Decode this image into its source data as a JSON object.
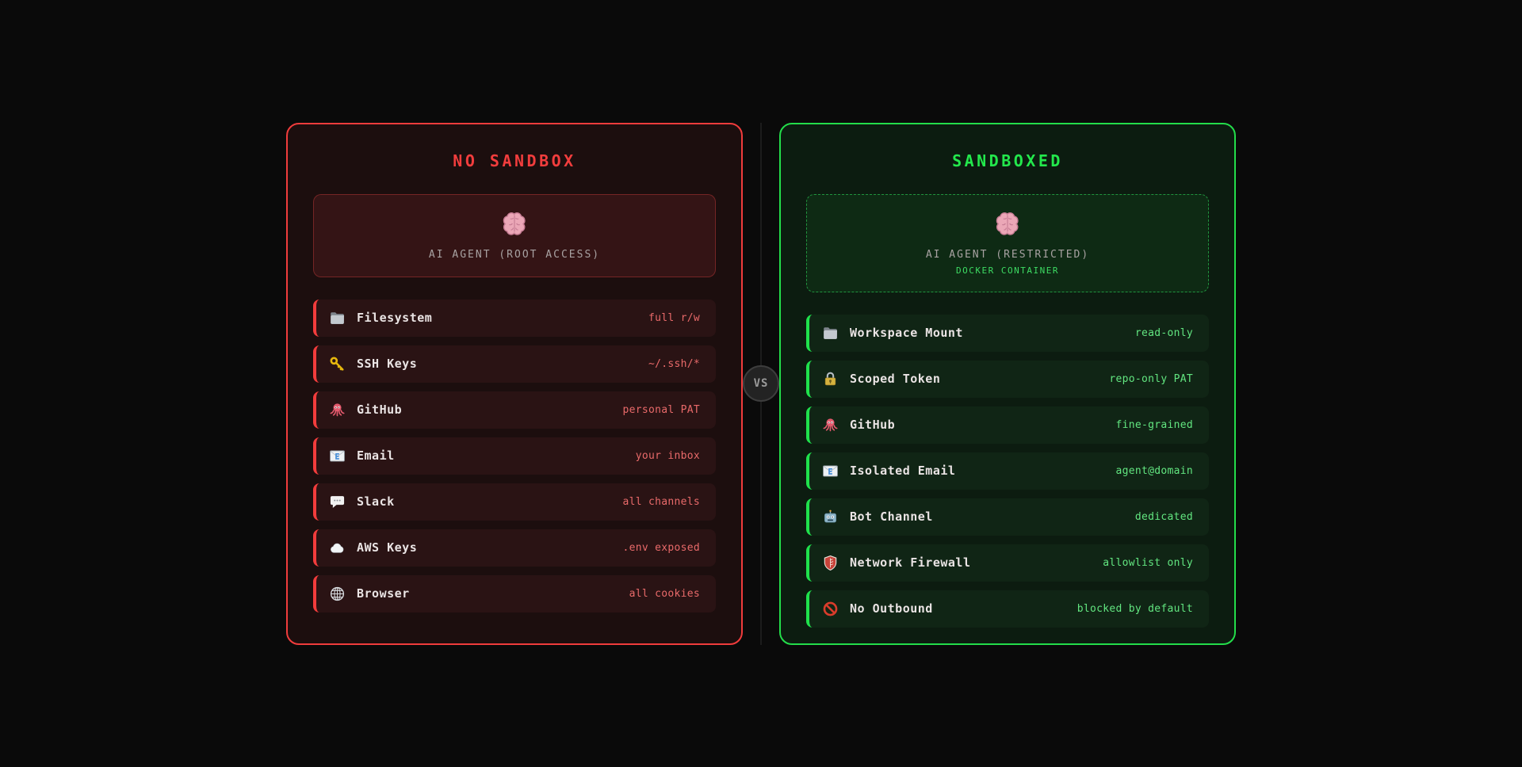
{
  "vs_badge": {
    "label": "VS"
  },
  "colors": {
    "danger_accent": "#f23c3c",
    "danger_value_text": "#e96a6a",
    "safe_accent": "#23dd4a",
    "safe_value_text": "#62e680",
    "docker_text": "#3ddb63",
    "agent_text": "#a8a2a2",
    "page_bg": "#0a0a0a"
  },
  "panels": [
    {
      "id": "no-sandbox",
      "title": "NO SANDBOX",
      "agent": {
        "icon": "brain",
        "icon_name": "brain-icon",
        "name": "AI AGENT (ROOT ACCESS)",
        "sub": ""
      },
      "rows": [
        {
          "icon": "folder",
          "icon_name": "folder-icon",
          "label": "Filesystem",
          "value": "full r/w"
        },
        {
          "icon": "key",
          "icon_name": "key-icon",
          "label": "SSH Keys",
          "value": "~/.ssh/*"
        },
        {
          "icon": "octopus",
          "icon_name": "octopus-icon",
          "label": "GitHub",
          "value": "personal PAT"
        },
        {
          "icon": "email",
          "icon_name": "email-icon",
          "label": "Email",
          "value": "your inbox"
        },
        {
          "icon": "speech",
          "icon_name": "speech-balloon-icon",
          "label": "Slack",
          "value": "all channels"
        },
        {
          "icon": "cloud",
          "icon_name": "cloud-icon",
          "label": "AWS Keys",
          "value": ".env exposed"
        },
        {
          "icon": "globe",
          "icon_name": "globe-icon",
          "label": "Browser",
          "value": "all cookies"
        }
      ]
    },
    {
      "id": "sandboxed",
      "title": "SANDBOXED",
      "agent": {
        "icon": "brain",
        "icon_name": "brain-icon",
        "name": "AI AGENT (RESTRICTED)",
        "sub": "DOCKER CONTAINER"
      },
      "rows": [
        {
          "icon": "folder",
          "icon_name": "folder-icon",
          "label": "Workspace Mount",
          "value": "read-only"
        },
        {
          "icon": "lock",
          "icon_name": "lock-icon",
          "label": "Scoped Token",
          "value": "repo-only PAT"
        },
        {
          "icon": "octopus",
          "icon_name": "octopus-icon",
          "label": "GitHub",
          "value": "fine-grained"
        },
        {
          "icon": "email",
          "icon_name": "email-icon",
          "label": "Isolated Email",
          "value": "agent@domain"
        },
        {
          "icon": "robot",
          "icon_name": "robot-icon",
          "label": "Bot Channel",
          "value": "dedicated"
        },
        {
          "icon": "shield",
          "icon_name": "shield-icon",
          "label": "Network Firewall",
          "value": "allowlist only"
        },
        {
          "icon": "no-entry",
          "icon_name": "no-entry-icon",
          "label": "No Outbound",
          "value": "blocked by default"
        }
      ]
    }
  ]
}
